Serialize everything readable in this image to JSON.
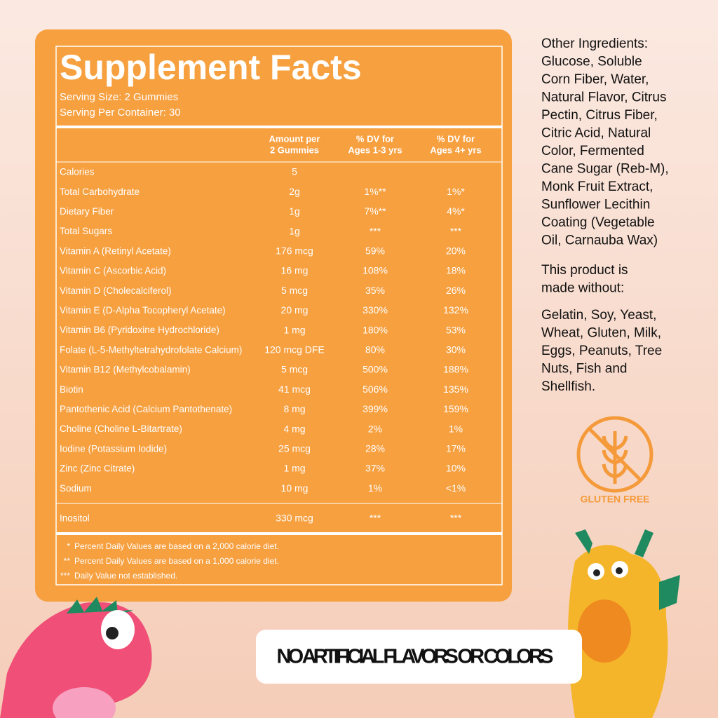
{
  "panel": {
    "title": "Supplement Facts",
    "serving_size": "Serving Size: 2 Gummies",
    "servings": "Serving Per Container: 30",
    "headers": [
      [
        "Amount per",
        "2 Gummies"
      ],
      [
        "% DV for",
        "Ages 1-3 yrs"
      ],
      [
        "% DV for",
        "Ages 4+ yrs"
      ]
    ],
    "rows": [
      [
        "Calories",
        "5"
      ],
      [
        "Total Carbohydrate",
        "2g",
        "1%**",
        "1%*"
      ],
      [
        "Dietary Fiber",
        "1g",
        "7%**",
        "4%*"
      ],
      [
        "Total Sugars",
        "1g",
        "***",
        "***"
      ],
      [
        "Vitamin A (Retinyl Acetate)",
        "176 mcg",
        "59%",
        "20%"
      ],
      [
        "Vitamin C (Ascorbic Acid)",
        "16 mg",
        "108%",
        "18%"
      ],
      [
        "Vitamin D (Cholecalciferol)",
        "5 mcg",
        "35%",
        "26%"
      ],
      [
        "Vitamin E (D-Alpha Tocopheryl Acetate)",
        "20 mg",
        "330%",
        "132%"
      ],
      [
        "Vitamin B6 (Pyridoxine Hydrochloride)",
        "1 mg",
        "180%",
        "53%"
      ],
      [
        "Folate (L-5-Methyltetrahydrofolate Calcium)",
        "120 mcg DFE",
        "80%",
        "30%"
      ],
      [
        "Vitamin B12 (Methylcobalamin)",
        "5 mcg",
        "500%",
        "188%"
      ],
      [
        "Biotin",
        "41 mcg",
        "506%",
        "135%"
      ],
      [
        "Pantothenic Acid (Calcium Pantothenate)",
        "8 mg",
        "399%",
        "159%"
      ],
      [
        "Choline (Choline L-Bitartrate)",
        "4 mg",
        "2%",
        "1%"
      ],
      [
        "Iodine (Potassium Iodide)",
        "25 mcg",
        "28%",
        "17%"
      ],
      [
        "Zinc (Zinc Citrate)",
        "1 mg",
        "37%",
        "10%"
      ],
      [
        "Sodium",
        "10 mg",
        "1%",
        "<1%"
      ]
    ],
    "extra_row": [
      "Inositol",
      "330 mcg",
      "***",
      "***"
    ],
    "footnotes": [
      [
        "*",
        "Percent Daily Values are based on a 2,000 calorie diet."
      ],
      [
        "**",
        "Percent Daily Values are based on a 1,000 calorie diet."
      ],
      [
        "***",
        "Daily Value not established."
      ]
    ]
  },
  "side": {
    "other_ingredients": [
      "Other Ingredients:",
      "Glucose,  Soluble",
      "Corn Fiber, Water,",
      "Natural Flavor, Citrus",
      "Pectin, Citrus Fiber,",
      "Citric Acid, Natural",
      "Color, Fermented",
      "Cane Sugar (Reb-M),",
      "Monk Fruit Extract,",
      "Sunflower Lecithin",
      "Coating (Vegetable",
      "Oil, Carnauba Wax)"
    ],
    "made_without": [
      "This product is",
      "made without:"
    ],
    "allergens": [
      "Gelatin, Soy, Yeast,",
      "Wheat, Gluten, Milk,",
      "Eggs, Peanuts, Tree",
      "Nuts, Fish and",
      "Shellfish."
    ],
    "badge": "GLUTEN FREE"
  },
  "banner": "NO ARTIFICIAL FLAVORS OR COLORS"
}
